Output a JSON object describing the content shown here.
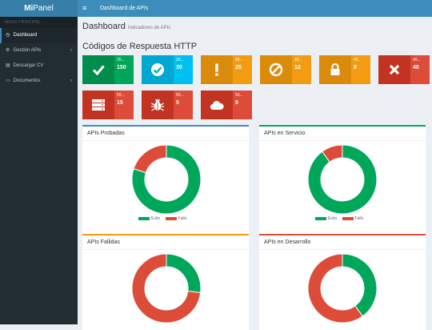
{
  "app": {
    "logo_bold": "Mi",
    "logo_rest": "Panel",
    "menu_icon": "≡",
    "topbar_title": "Dashboard de APIs"
  },
  "sidebar": {
    "header": "MENÚ PRINCIPAL",
    "items": [
      {
        "label": "Dashboard",
        "icon": "dashboard-icon",
        "active": true
      },
      {
        "label": "Gestión APIs",
        "icon": "cogs-icon",
        "chevron": "‹"
      },
      {
        "label": "Descargar CV",
        "icon": "file-icon"
      },
      {
        "label": "Documentos",
        "icon": "folder-icon",
        "chevron": "‹"
      }
    ]
  },
  "page": {
    "title": "Dashboard",
    "subtitle": "Indicadores de APIs",
    "section_title": "Códigos de Respuesta HTTP"
  },
  "tiles": [
    {
      "code": "20...",
      "count": "150",
      "icon": "check-icon",
      "colors": {
        "icon": "#008d4c",
        "text": "#00a65a"
      }
    },
    {
      "code": "20...",
      "count": "30",
      "icon": "check-circle-icon",
      "colors": {
        "icon": "#00a7d0",
        "text": "#00c0ef"
      }
    },
    {
      "code": "40...",
      "count": "25",
      "icon": "exclamation-icon",
      "colors": {
        "icon": "#db8b0b",
        "text": "#f39c12"
      }
    },
    {
      "code": "40...",
      "count": "12",
      "icon": "ban-icon",
      "colors": {
        "icon": "#db8b0b",
        "text": "#f39c12"
      }
    },
    {
      "code": "40...",
      "count": "8",
      "icon": "lock-icon",
      "colors": {
        "icon": "#db8b0b",
        "text": "#f39c12"
      }
    },
    {
      "code": "40...",
      "count": "40",
      "icon": "times-icon",
      "colors": {
        "icon": "#c23321",
        "text": "#dd4b39"
      }
    },
    {
      "code": "50...",
      "count": "15",
      "icon": "server-icon",
      "colors": {
        "icon": "#c23321",
        "text": "#dd4b39"
      }
    },
    {
      "code": "50...",
      "count": "5",
      "icon": "bug-icon",
      "colors": {
        "icon": "#c23321",
        "text": "#dd4b39"
      }
    },
    {
      "code": "50...",
      "count": "9",
      "icon": "cloud-icon",
      "colors": {
        "icon": "#c23321",
        "text": "#dd4b39"
      }
    }
  ],
  "panels": [
    {
      "title": "APIs Probadas",
      "border": "#3c8dbc",
      "success": 80,
      "fail": 20,
      "legend": [
        "Exito",
        "Fallo"
      ]
    },
    {
      "title": "APIs en Servicio",
      "border": "#00a65a",
      "success": 90,
      "fail": 10,
      "legend": [
        "Exito",
        "Fallo"
      ]
    },
    {
      "title": "APIs Fallidas",
      "border": "#f39c12",
      "success": 27,
      "fail": 73
    },
    {
      "title": "APIs en Desarrollo",
      "border": "#dd4b39",
      "success": 40,
      "fail": 60
    }
  ],
  "colors": {
    "success": "#00a65a",
    "fail": "#dd4b39"
  }
}
